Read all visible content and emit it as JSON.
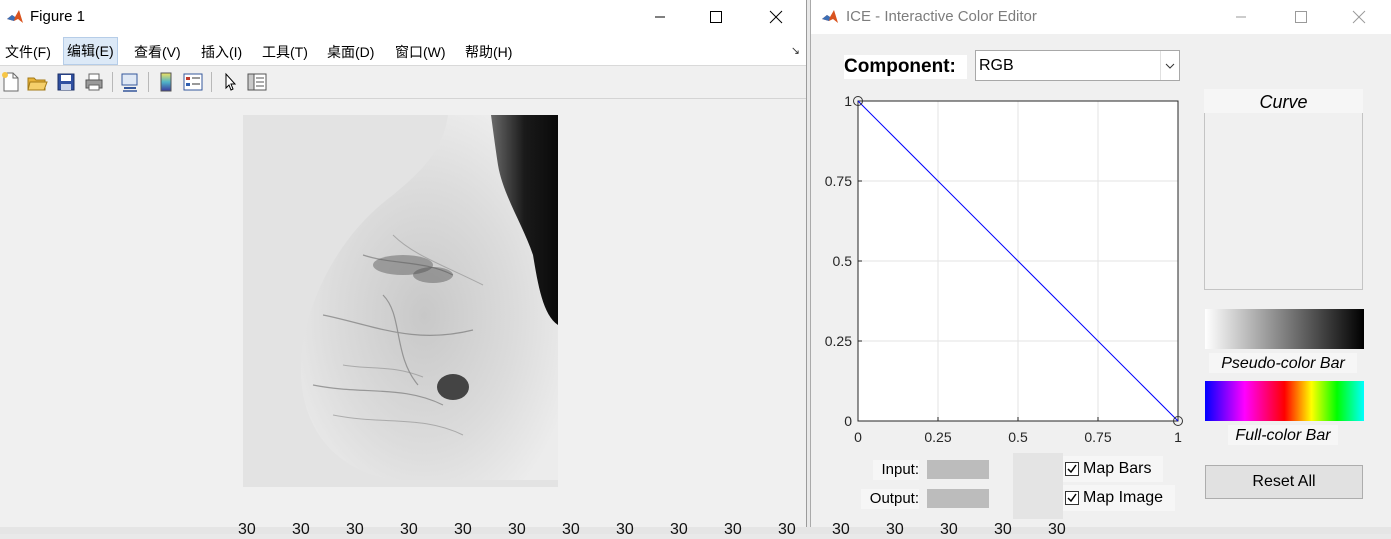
{
  "figure_window": {
    "title": "Figure 1",
    "menu": [
      "文件(F)",
      "编辑(E)",
      "查看(V)",
      "插入(I)",
      "工具(T)",
      "桌面(D)",
      "窗口(W)",
      "帮助(H)"
    ],
    "active_menu_index": 1,
    "toolbar_icons": [
      "new-figure-icon",
      "open-file-icon",
      "save-icon",
      "print-icon",
      "link-plot-icon",
      "colorbar-icon",
      "legend-icon",
      "pointer-icon",
      "property-editor-icon"
    ]
  },
  "ice_window": {
    "title": "ICE - Interactive Color Editor",
    "component_label": "Component:",
    "component_value": "RGB",
    "curve_label": "Curve",
    "pseudo_bar_label": "Pseudo-color Bar",
    "full_bar_label": "Full-color Bar",
    "input_label": "Input:",
    "output_label": "Output:",
    "map_bars_label": "Map Bars",
    "map_bars_checked": true,
    "map_image_label": "Map Image",
    "map_image_checked": true,
    "reset_label": "Reset All"
  },
  "chart_data": {
    "type": "line",
    "series": [
      {
        "x": [
          0,
          1
        ],
        "y": [
          1,
          0
        ],
        "color": "#0000ff"
      }
    ],
    "control_points": [
      {
        "x": 0,
        "y": 1
      },
      {
        "x": 1,
        "y": 0
      }
    ],
    "xlim": [
      0,
      1
    ],
    "ylim": [
      0,
      1
    ],
    "x_ticks": [
      "0",
      "0.25",
      "0.5",
      "0.75",
      "1"
    ],
    "y_ticks": [
      "0",
      "0.25",
      "0.5",
      "0.75",
      "1"
    ],
    "grid": true
  },
  "background_strip": [
    "30",
    "30",
    "30",
    "30",
    "30",
    "30",
    "30",
    "30",
    "30",
    "30",
    "30",
    "30",
    "30",
    "30",
    "30",
    "30"
  ]
}
